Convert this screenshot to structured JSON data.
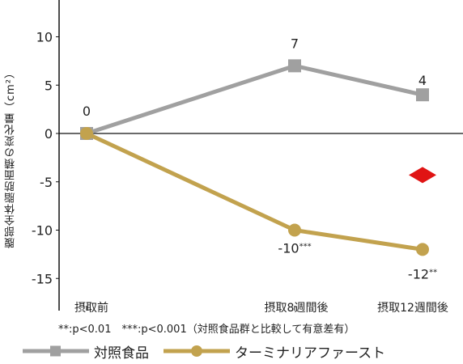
{
  "chart_data": {
    "type": "line",
    "title": "",
    "xlabel": "",
    "ylabel": "腹部全体脂肪面積の変化量（cm²）",
    "categories": [
      "摂取前",
      "摂取8週間後",
      "摂取12週間後"
    ],
    "ylim": [
      -18,
      13
    ],
    "yticks": [
      10,
      5,
      0,
      -5,
      -10,
      -15
    ],
    "series": [
      {
        "name": "対照食品",
        "values": [
          0,
          7,
          4
        ],
        "labels": [
          "0",
          "7",
          "4"
        ],
        "color": "#a0a0a0",
        "marker": "square"
      },
      {
        "name": "ターミナリアファースト",
        "values": [
          0,
          -10,
          -12
        ],
        "labels": [
          "",
          "-10***",
          "-12**"
        ],
        "color": "#c2a24e",
        "marker": "circle"
      }
    ],
    "annotation_marker": {
      "shape": "diamond",
      "color": "#e01414",
      "x_index": 2,
      "y": -4.3
    },
    "footnote": "**:p<0.01　***:p<0.001（対照食品群と比較して有意差有）",
    "grid": false,
    "legend": "bottom-left"
  }
}
